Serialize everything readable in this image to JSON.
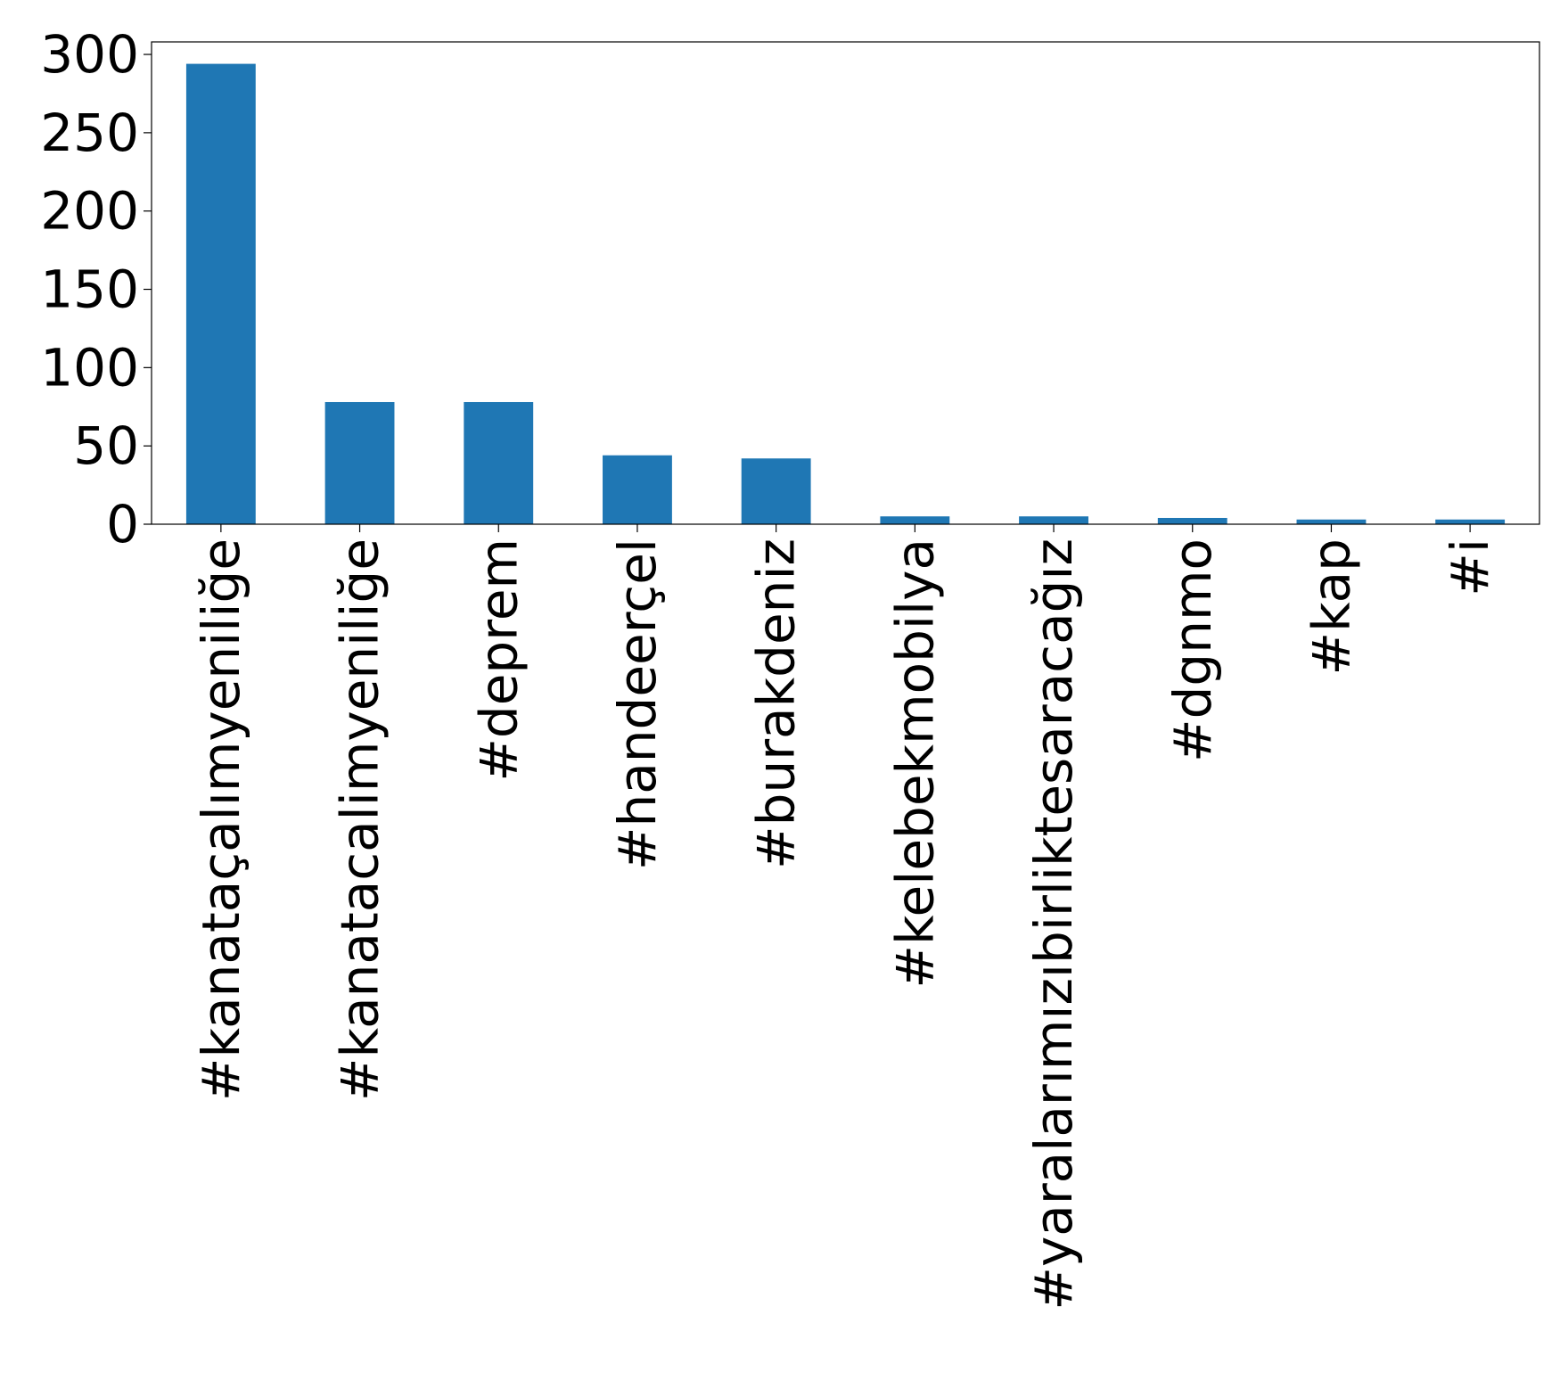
{
  "chart_data": {
    "type": "bar",
    "title": "",
    "xlabel": "",
    "ylabel": "",
    "categories": [
      "#kanataçalımyeniliğe",
      "#kanatacalimyeniliğe",
      "#deprem",
      "#handeerçel",
      "#burakdeniz",
      "#kelebekmobilya",
      "#yaralarımızıbirliktesaracağız",
      "#dgnmo",
      "#kap",
      "#i"
    ],
    "values": [
      294,
      78,
      78,
      44,
      42,
      5,
      5,
      4,
      3,
      3
    ],
    "ylim": [
      0,
      308
    ],
    "yticks": [
      "0",
      "50",
      "100",
      "150",
      "200",
      "250",
      "300"
    ],
    "bar_color": "#1f77b4",
    "grid": false,
    "legend": "none"
  }
}
